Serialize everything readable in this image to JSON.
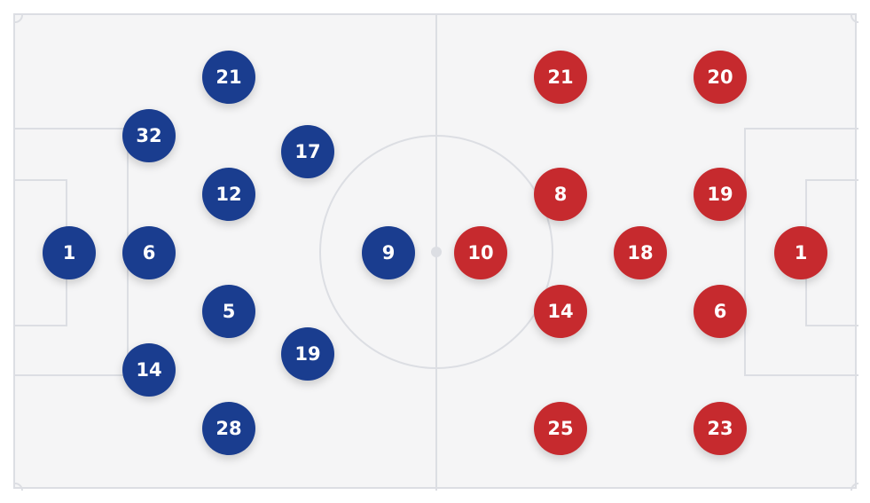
{
  "teams": {
    "home": {
      "color": "#1a3d8f",
      "players": [
        {
          "number": "1",
          "row": 1,
          "col": 1
        },
        {
          "number": "32",
          "row": 2,
          "col": 2
        },
        {
          "number": "6",
          "row": 3,
          "col": 2
        },
        {
          "number": "14",
          "row": 4,
          "col": 2
        },
        {
          "number": "21",
          "row": 5,
          "col": 3
        },
        {
          "number": "12",
          "row": 6,
          "col": 3
        },
        {
          "number": "5",
          "row": 7,
          "col": 3
        },
        {
          "number": "28",
          "row": 8,
          "col": 3
        },
        {
          "number": "17",
          "row": 9,
          "col": 4
        },
        {
          "number": "19",
          "row": 10,
          "col": 4
        },
        {
          "number": "9",
          "row": 11,
          "col": 5
        }
      ]
    },
    "away": {
      "color": "#c62a2e",
      "players": [
        {
          "number": "1",
          "row": 1,
          "col": 1
        },
        {
          "number": "20",
          "row": 2,
          "col": 2
        },
        {
          "number": "19",
          "row": 3,
          "col": 2
        },
        {
          "number": "6",
          "row": 4,
          "col": 2
        },
        {
          "number": "23",
          "row": 5,
          "col": 2
        },
        {
          "number": "18",
          "row": 6,
          "col": 3
        },
        {
          "number": "21",
          "row": 7,
          "col": 4
        },
        {
          "number": "8",
          "row": 8,
          "col": 4
        },
        {
          "number": "14",
          "row": 9,
          "col": 4
        },
        {
          "number": "25",
          "row": 10,
          "col": 4
        },
        {
          "number": "10",
          "row": 11,
          "col": 5
        }
      ]
    }
  }
}
